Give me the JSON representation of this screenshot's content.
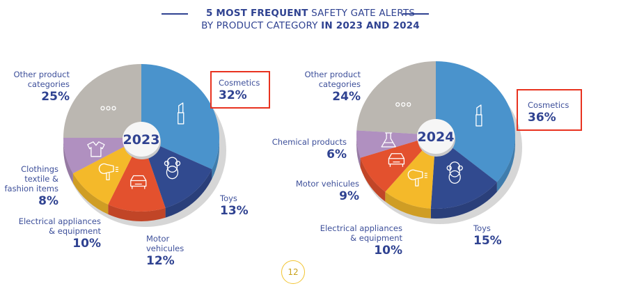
{
  "title": {
    "line1_bold": "5 MOST FREQUENT",
    "line1_rest": " SAFETY GATE ALERTS",
    "line2_rest": "BY PRODUCT CATEGORY ",
    "line2_bold": "IN 2023 AND 2024"
  },
  "page_number": "12",
  "colors": {
    "cosmetics": "#4a93cc",
    "toys": "#314a8f",
    "motor": "#e3512e",
    "electrical": "#f4b92a",
    "clothing": "#b090c0",
    "chemical": "#b090c0",
    "other": "#bbb7b1",
    "highlight": "#e8321f",
    "text": "#2f4291"
  },
  "chart_data": [
    {
      "type": "pie",
      "title": "2023",
      "slices": [
        {
          "key": "cosmetics",
          "label": "Cosmetics",
          "value": 32,
          "pct_label": "32%",
          "icon": "lipstick-icon",
          "highlighted": true
        },
        {
          "key": "toys",
          "label": "Toys",
          "value": 13,
          "pct_label": "13%",
          "icon": "teddy-bear-icon"
        },
        {
          "key": "motor",
          "label": "Motor vehicules",
          "value": 12,
          "pct_label": "12%",
          "icon": "car-icon"
        },
        {
          "key": "electrical",
          "label": "Electrical appliances & equipment",
          "value": 10,
          "pct_label": "10%",
          "icon": "hair-dryer-icon"
        },
        {
          "key": "clothing",
          "label": "Clothings textile & fashion items",
          "value": 8,
          "pct_label": "8%",
          "icon": "shirt-icon"
        },
        {
          "key": "other",
          "label": "Other product categories",
          "value": 25,
          "pct_label": "25%",
          "icon": "more-dots-icon"
        }
      ],
      "label_lines": {
        "cosmetics": [
          "Cosmetics"
        ],
        "toys": [
          "Toys"
        ],
        "motor": [
          "Motor",
          "vehicules"
        ],
        "electrical": [
          "Electrical appliances",
          "& equipment"
        ],
        "clothing": [
          "Clothings",
          "textile &",
          "fashion items"
        ],
        "other": [
          "Other product",
          "categories"
        ]
      }
    },
    {
      "type": "pie",
      "title": "2024",
      "slices": [
        {
          "key": "cosmetics",
          "label": "Cosmetics",
          "value": 36,
          "pct_label": "36%",
          "icon": "lipstick-icon",
          "highlighted": true
        },
        {
          "key": "toys",
          "label": "Toys",
          "value": 15,
          "pct_label": "15%",
          "icon": "teddy-bear-icon"
        },
        {
          "key": "electrical",
          "label": "Electrical appliances & equipment",
          "value": 10,
          "pct_label": "10%",
          "icon": "hair-dryer-icon"
        },
        {
          "key": "motor",
          "label": "Motor vehicules",
          "value": 9,
          "pct_label": "9%",
          "icon": "car-icon"
        },
        {
          "key": "chemical",
          "label": "Chemical products",
          "value": 6,
          "pct_label": "6%",
          "icon": "flask-icon"
        },
        {
          "key": "other",
          "label": "Other product categories",
          "value": 24,
          "pct_label": "24%",
          "icon": "more-dots-icon"
        }
      ],
      "label_lines": {
        "cosmetics": [
          "Cosmetics"
        ],
        "toys": [
          "Toys"
        ],
        "electrical": [
          "Electrical appliances",
          "& equipment"
        ],
        "motor": [
          "Motor vehicules"
        ],
        "chemical": [
          "Chemical products"
        ],
        "other": [
          "Other product",
          "categories"
        ]
      }
    }
  ]
}
